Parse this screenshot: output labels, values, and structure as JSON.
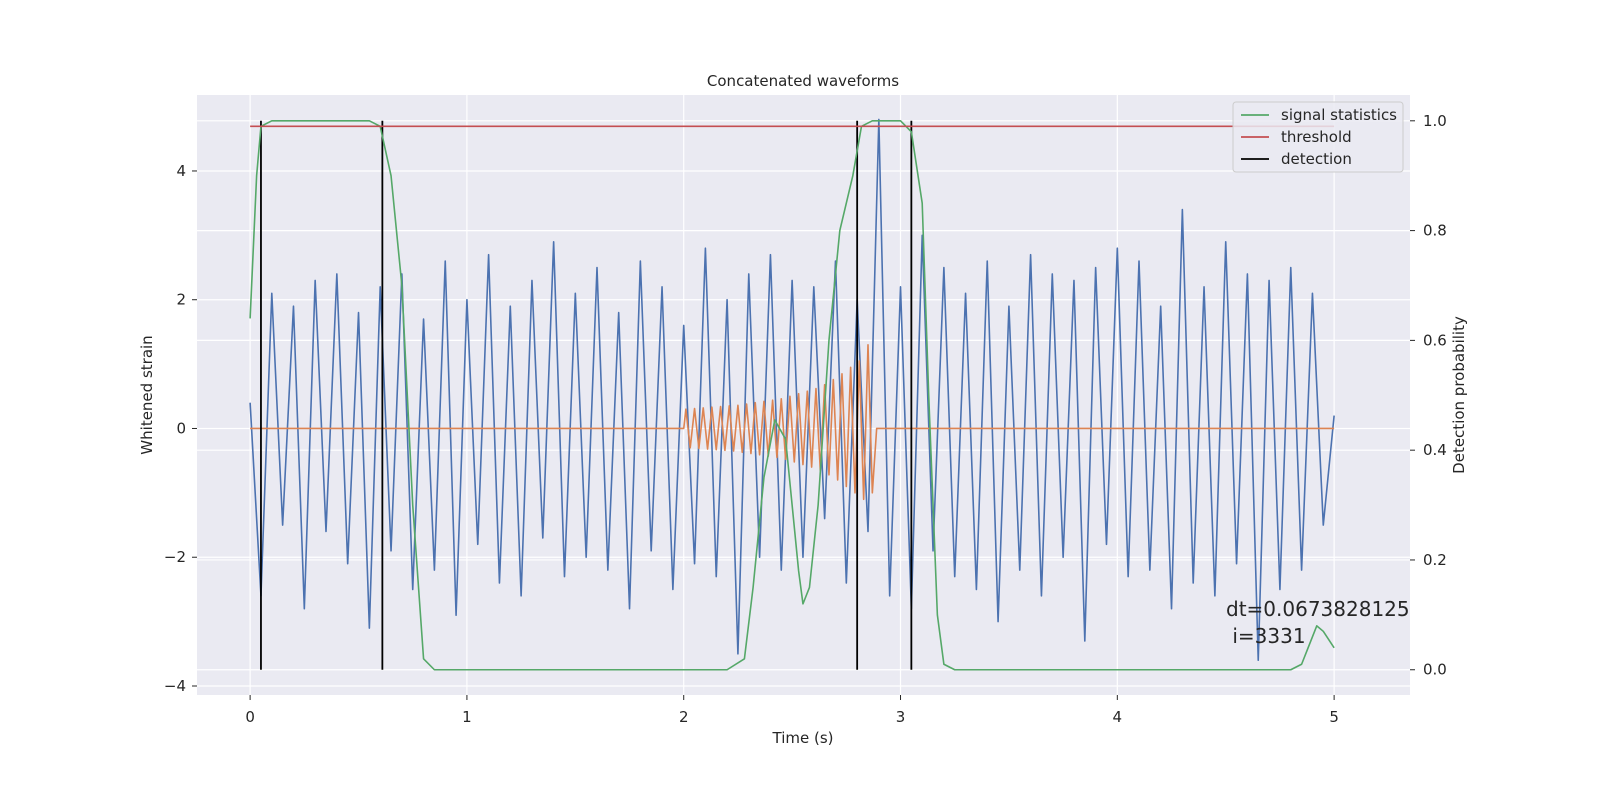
{
  "chart_data": {
    "type": "line",
    "title": "Concatenated waveforms",
    "xlabel": "Time (s)",
    "ylabel": "Whitened strain",
    "y2label": "Detection probability",
    "xlim": [
      -0.245,
      5.35
    ],
    "ylim": [
      -4.14,
      5.18
    ],
    "y2lim": [
      -0.046,
      1.047
    ],
    "xticks": [
      0,
      1,
      2,
      3,
      4,
      5
    ],
    "yticks": [
      {
        "value": -4,
        "label": "−4"
      },
      {
        "value": -2,
        "label": "−2"
      },
      0,
      2,
      4
    ],
    "y2ticks": [
      {
        "value": 0,
        "label": "0.0"
      },
      0.2,
      0.4,
      0.6,
      0.8,
      {
        "value": 1,
        "label": "1.0"
      }
    ],
    "grid": true,
    "legend": "upper right",
    "series": [
      {
        "color": "#4c72b0",
        "x": [
          0,
          0.05,
          0.1,
          0.15,
          0.2,
          0.25,
          0.3,
          0.35,
          0.4,
          0.45,
          0.5,
          0.55,
          0.6,
          0.65,
          0.7,
          0.75,
          0.8,
          0.85,
          0.9,
          0.95,
          1,
          1.05,
          1.1,
          1.15,
          1.2,
          1.25,
          1.3,
          1.35,
          1.4,
          1.45,
          1.5,
          1.55,
          1.6,
          1.65,
          1.7,
          1.75,
          1.8,
          1.85,
          1.9,
          1.95,
          2,
          2.05,
          2.1,
          2.15,
          2.2,
          2.25,
          2.3,
          2.35,
          2.4,
          2.45,
          2.5,
          2.55,
          2.6,
          2.65,
          2.7,
          2.75,
          2.8,
          2.85,
          2.9,
          2.95,
          3,
          3.05,
          3.1,
          3.15,
          3.2,
          3.25,
          3.3,
          3.35,
          3.4,
          3.45,
          3.5,
          3.55,
          3.6,
          3.65,
          3.7,
          3.75,
          3.8,
          3.85,
          3.9,
          3.95,
          4,
          4.05,
          4.1,
          4.15,
          4.2,
          4.25,
          4.3,
          4.35,
          4.4,
          4.45,
          4.5,
          4.55,
          4.6,
          4.65,
          4.7,
          4.75,
          4.8,
          4.85,
          4.9,
          4.95,
          5
        ],
        "values": [
          0.4,
          -2.6,
          2.1,
          -1.5,
          1.9,
          -2.8,
          2.3,
          -1.6,
          2.4,
          -2.1,
          1.8,
          -3.1,
          2.2,
          -1.9,
          2.4,
          -2.5,
          1.7,
          -2.2,
          2.6,
          -2.9,
          2.0,
          -1.8,
          2.7,
          -2.4,
          1.9,
          -2.6,
          2.3,
          -1.7,
          2.9,
          -2.3,
          2.1,
          -2.0,
          2.5,
          -2.2,
          1.8,
          -2.8,
          2.6,
          -1.9,
          2.2,
          -2.5,
          1.6,
          -2.1,
          2.8,
          -2.3,
          2.0,
          -3.5,
          2.4,
          -2.0,
          2.7,
          -2.2,
          2.3,
          -2.0,
          2.2,
          -1.4,
          2.6,
          -2.4,
          2.0,
          -1.6,
          4.8,
          -2.6,
          2.2,
          -2.8,
          3.0,
          -1.9,
          2.5,
          -2.3,
          2.1,
          -2.5,
          2.6,
          -3.0,
          1.9,
          -2.2,
          2.7,
          -2.6,
          2.4,
          -2.0,
          2.3,
          -3.3,
          2.5,
          -1.8,
          2.8,
          -2.3,
          2.6,
          -2.2,
          1.9,
          -2.8,
          3.4,
          -2.4,
          2.2,
          -2.6,
          2.9,
          -2.1,
          2.4,
          -3.6,
          2.3,
          -2.5,
          2.5,
          -2.2,
          2.1,
          -1.5,
          0.2
        ]
      },
      {
        "color": "#dd8452",
        "x": [
          0,
          2,
          2.01,
          2.03,
          2.05,
          2.07,
          2.09,
          2.11,
          2.13,
          2.15,
          2.17,
          2.19,
          2.21,
          2.23,
          2.25,
          2.27,
          2.29,
          2.31,
          2.33,
          2.35,
          2.37,
          2.39,
          2.41,
          2.43,
          2.45,
          2.47,
          2.49,
          2.51,
          2.53,
          2.55,
          2.57,
          2.59,
          2.61,
          2.63,
          2.65,
          2.67,
          2.69,
          2.71,
          2.73,
          2.75,
          2.77,
          2.79,
          2.81,
          2.83,
          2.85,
          2.87,
          2.89,
          5
        ],
        "values": [
          0,
          0,
          0.3,
          -0.3,
          0.31,
          -0.31,
          0.32,
          -0.32,
          0.33,
          -0.33,
          0.34,
          -0.34,
          0.35,
          -0.35,
          0.36,
          -0.37,
          0.38,
          -0.39,
          0.4,
          -0.41,
          0.42,
          -0.43,
          0.44,
          -0.45,
          0.46,
          -0.48,
          0.5,
          -0.52,
          0.54,
          -0.56,
          0.58,
          -0.6,
          0.62,
          -0.65,
          0.68,
          -0.72,
          0.76,
          -0.8,
          0.85,
          -0.9,
          0.95,
          -1.0,
          1.05,
          -1.1,
          1.3,
          -1.0,
          0,
          0
        ]
      },
      {
        "name": "signal statistics",
        "color": "#55a868",
        "axis": "y2",
        "x": [
          0,
          0.03,
          0.05,
          0.1,
          0.55,
          0.6,
          0.65,
          0.7,
          0.75,
          0.8,
          0.85,
          2.2,
          2.28,
          2.32,
          2.37,
          2.42,
          2.47,
          2.5,
          2.53,
          2.55,
          2.58,
          2.62,
          2.67,
          2.72,
          2.78,
          2.82,
          2.87,
          3.0,
          3.05,
          3.1,
          3.13,
          3.17,
          3.2,
          3.25,
          4.8,
          4.85,
          4.88,
          4.92,
          4.95,
          5
        ],
        "values": [
          0.64,
          0.9,
          0.99,
          1.0,
          1.0,
          0.99,
          0.9,
          0.7,
          0.3,
          0.02,
          0.0,
          0.0,
          0.02,
          0.15,
          0.35,
          0.455,
          0.42,
          0.3,
          0.18,
          0.12,
          0.15,
          0.3,
          0.6,
          0.8,
          0.9,
          0.99,
          1.0,
          1.0,
          0.98,
          0.85,
          0.5,
          0.1,
          0.01,
          0.0,
          0.0,
          0.01,
          0.04,
          0.08,
          0.07,
          0.04
        ]
      },
      {
        "name": "threshold",
        "color": "#c44e52",
        "axis": "y2",
        "x": [
          0,
          5
        ],
        "values": [
          0.99,
          0.99
        ]
      }
    ],
    "detection": {
      "name": "detection",
      "color": "#000000",
      "axis": "y2",
      "x": [
        0.05,
        0.61,
        2.8,
        3.05
      ],
      "ymin": 0,
      "ymax": 1
    },
    "annotation": [
      "dt=0.0673828125",
      " i=3331"
    ]
  }
}
